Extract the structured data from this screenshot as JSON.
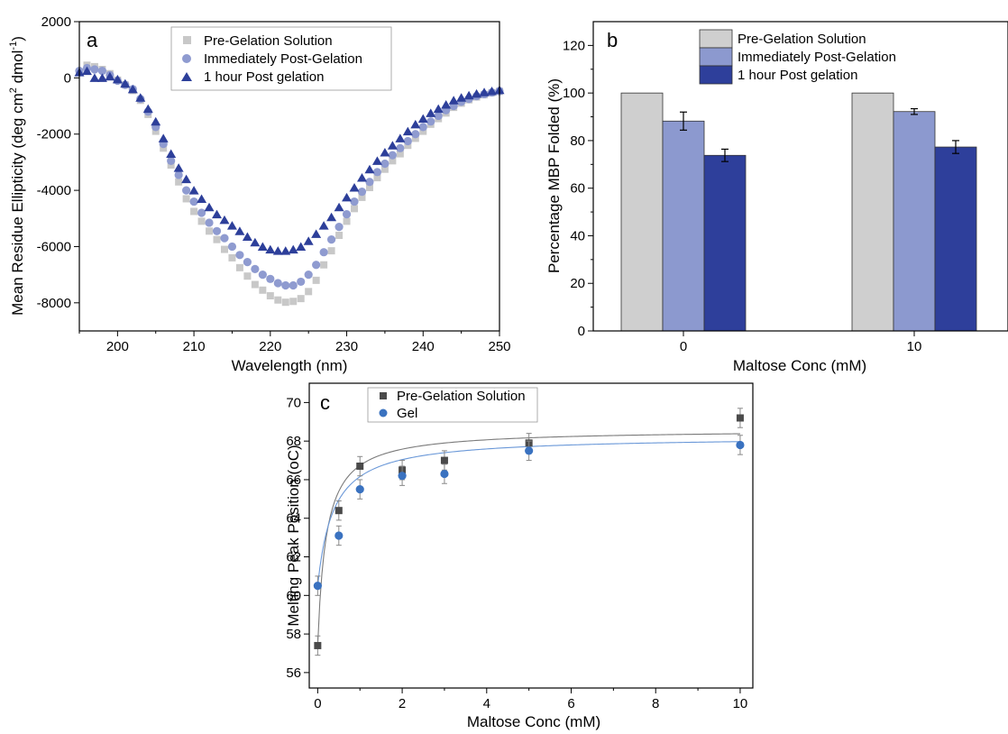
{
  "chart_data": [
    {
      "panel": "a",
      "type": "scatter",
      "xlabel": "Wavelength (nm)",
      "ylabel_main": "Mean Residue Ellipticity (deg cm",
      "ylabel_sup1": "2",
      "ylabel_mid": " dmol",
      "ylabel_sup2": "-1",
      "ylabel_end": ")",
      "xlim": [
        195,
        250
      ],
      "ylim": [
        -9000,
        2000
      ],
      "xticks": [
        200,
        210,
        220,
        230,
        240,
        250
      ],
      "yticks": [
        -8000,
        -6000,
        -4000,
        -2000,
        0,
        2000
      ],
      "legend_position": "top-center",
      "series": [
        {
          "name": "Pre-Gelation Solution",
          "marker": "square",
          "color": "#c8c8c8",
          "x": [
            195,
            196,
            197,
            198,
            199,
            200,
            201,
            202,
            203,
            204,
            205,
            206,
            207,
            208,
            209,
            210,
            211,
            212,
            213,
            214,
            215,
            216,
            217,
            218,
            219,
            220,
            221,
            222,
            223,
            224,
            225,
            226,
            227,
            228,
            229,
            230,
            231,
            232,
            233,
            234,
            235,
            236,
            237,
            238,
            239,
            240,
            241,
            242,
            243,
            244,
            245,
            246,
            247,
            248,
            249,
            250
          ],
          "y": [
            200,
            450,
            400,
            300,
            150,
            -80,
            -250,
            -450,
            -800,
            -1300,
            -1900,
            -2500,
            -3100,
            -3700,
            -4300,
            -4750,
            -5100,
            -5450,
            -5750,
            -6100,
            -6400,
            -6750,
            -7050,
            -7350,
            -7550,
            -7750,
            -7900,
            -7980,
            -7950,
            -7850,
            -7600,
            -7200,
            -6650,
            -6150,
            -5600,
            -5100,
            -4650,
            -4250,
            -3900,
            -3550,
            -3250,
            -2950,
            -2700,
            -2400,
            -2150,
            -1900,
            -1650,
            -1450,
            -1250,
            -1050,
            -900,
            -780,
            -680,
            -600,
            -530,
            -480
          ]
        },
        {
          "name": "Immediately Post-Gelation",
          "marker": "circle",
          "color": "#8f9bd0",
          "x": [
            195,
            196,
            197,
            198,
            199,
            200,
            201,
            202,
            203,
            204,
            205,
            206,
            207,
            208,
            209,
            210,
            211,
            212,
            213,
            214,
            215,
            216,
            217,
            218,
            219,
            220,
            221,
            222,
            223,
            224,
            225,
            226,
            227,
            228,
            229,
            230,
            231,
            232,
            233,
            234,
            235,
            236,
            237,
            238,
            239,
            240,
            241,
            242,
            243,
            244,
            245,
            246,
            247,
            248,
            249,
            250
          ],
          "y": [
            250,
            350,
            300,
            250,
            100,
            -100,
            -250,
            -400,
            -750,
            -1200,
            -1750,
            -2350,
            -2950,
            -3450,
            -4000,
            -4400,
            -4800,
            -5150,
            -5450,
            -5700,
            -6000,
            -6300,
            -6550,
            -6800,
            -7000,
            -7150,
            -7300,
            -7380,
            -7380,
            -7250,
            -7000,
            -6650,
            -6200,
            -5750,
            -5300,
            -4850,
            -4400,
            -4050,
            -3700,
            -3350,
            -3050,
            -2750,
            -2500,
            -2250,
            -2000,
            -1750,
            -1550,
            -1350,
            -1150,
            -1000,
            -850,
            -750,
            -650,
            -580,
            -520,
            -470
          ]
        },
        {
          "name": "1 hour Post gelation",
          "marker": "triangle",
          "color": "#2d3f9a",
          "x": [
            195,
            196,
            197,
            198,
            199,
            200,
            201,
            202,
            203,
            204,
            205,
            206,
            207,
            208,
            209,
            210,
            211,
            212,
            213,
            214,
            215,
            216,
            217,
            218,
            219,
            220,
            221,
            222,
            223,
            224,
            225,
            226,
            227,
            228,
            229,
            230,
            231,
            232,
            233,
            234,
            235,
            236,
            237,
            238,
            239,
            240,
            241,
            242,
            243,
            244,
            245,
            246,
            247,
            248,
            249,
            250
          ],
          "y": [
            200,
            250,
            0,
            0,
            50,
            -50,
            -200,
            -400,
            -700,
            -1100,
            -1550,
            -2150,
            -2700,
            -3200,
            -3600,
            -4000,
            -4300,
            -4600,
            -4850,
            -5050,
            -5250,
            -5450,
            -5650,
            -5850,
            -6000,
            -6100,
            -6150,
            -6150,
            -6100,
            -6000,
            -5800,
            -5550,
            -5250,
            -4950,
            -4600,
            -4250,
            -3900,
            -3550,
            -3250,
            -2950,
            -2650,
            -2400,
            -2150,
            -1900,
            -1650,
            -1450,
            -1250,
            -1100,
            -950,
            -800,
            -700,
            -620,
            -560,
            -510,
            -470,
            -430
          ]
        }
      ]
    },
    {
      "panel": "b",
      "type": "bar",
      "xlabel": "Maltose Conc (mM)",
      "ylabel": "Percentage MBP Folded (%)",
      "categories": [
        "0",
        "10"
      ],
      "ylim": [
        0,
        130
      ],
      "yticks": [
        0,
        20,
        40,
        60,
        80,
        100,
        120
      ],
      "legend_position": "top-center",
      "series": [
        {
          "name": "Pre-Gelation Solution",
          "color": "#cfcfcf",
          "values": [
            100,
            100
          ],
          "errors": [
            0,
            0
          ]
        },
        {
          "name": "Immediately Post-Gelation",
          "color": "#8c99cf",
          "values": [
            88.2,
            92.2
          ],
          "errors": [
            3.8,
            1.2
          ]
        },
        {
          "name": "1 hour Post gelation",
          "color": "#2e3f9b",
          "values": [
            73.8,
            77.3
          ],
          "errors": [
            2.6,
            2.7
          ]
        }
      ]
    },
    {
      "panel": "c",
      "type": "scatter",
      "xlabel": "Maltose Conc (mM)",
      "ylabel": "Melting Peak Position (",
      "ylabel_unit": "oC",
      "ylabel_end": ")",
      "xlim": [
        -0.2,
        10.3
      ],
      "ylim": [
        55.2,
        71
      ],
      "xticks": [
        0,
        2,
        4,
        6,
        8,
        10
      ],
      "yticks": [
        56,
        58,
        60,
        62,
        64,
        66,
        68,
        70
      ],
      "legend_position": "top-left",
      "series": [
        {
          "name": "Pre-Gelation Solution",
          "marker": "square",
          "color": "#4a4a4a",
          "fit_color": "#7a7a7a",
          "x": [
            0,
            0.5,
            1,
            2,
            3,
            5,
            10
          ],
          "y": [
            57.4,
            64.4,
            66.7,
            66.5,
            67.0,
            67.9,
            69.2
          ],
          "errors": [
            0.5,
            0.5,
            0.5,
            0.5,
            0.5,
            0.5,
            0.5
          ],
          "fit": {
            "y0": 57.4,
            "a": 11.2,
            "k": 0.2
          }
        },
        {
          "name": "Gel",
          "marker": "circle",
          "color": "#3a72c0",
          "fit_color": "#6a98d8",
          "x": [
            0,
            0.5,
            1,
            2,
            3,
            5,
            10
          ],
          "y": [
            60.5,
            63.1,
            65.5,
            66.2,
            66.3,
            67.5,
            67.8
          ],
          "errors": [
            0.5,
            0.5,
            0.5,
            0.5,
            0.5,
            0.5,
            0.5
          ],
          "fit": {
            "y0": 60.5,
            "a": 7.75,
            "k": 0.37
          }
        }
      ]
    }
  ],
  "panel_labels": {
    "a": "a",
    "b": "b",
    "c": "c"
  }
}
